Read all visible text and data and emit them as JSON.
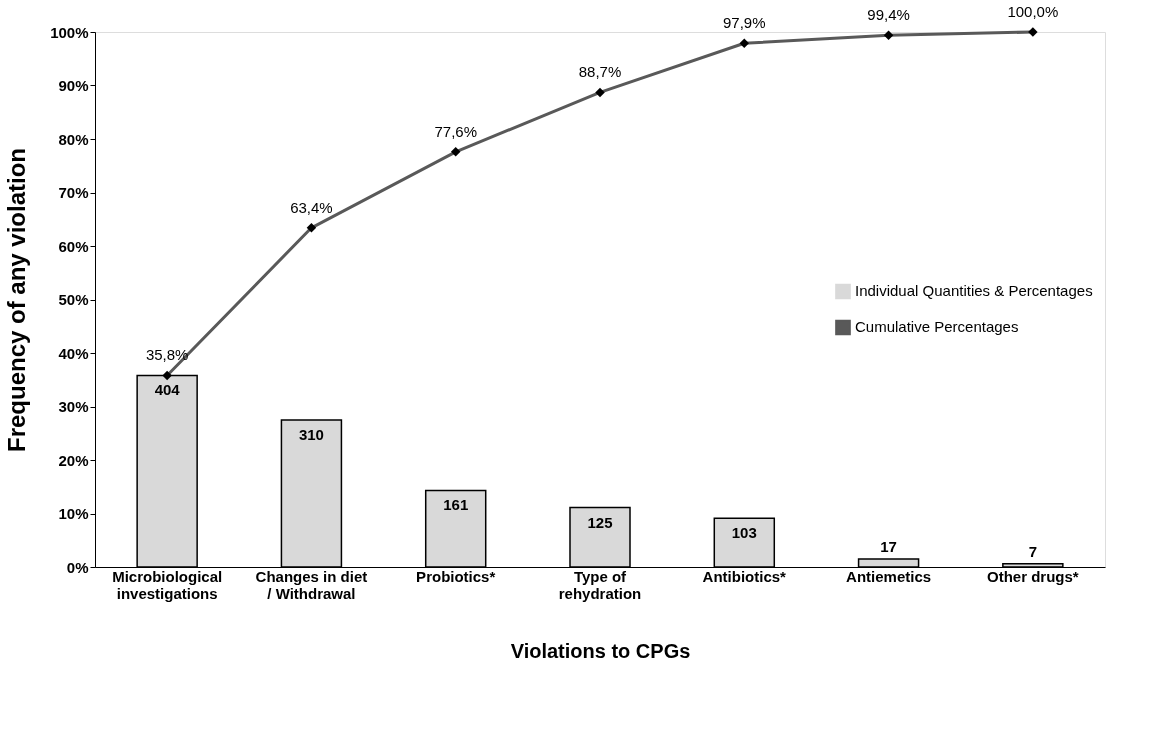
{
  "chart_data": {
    "type": "bar",
    "xlabel": "Violations to CPGs",
    "ylabel": "Frequency of any violation",
    "categories": [
      "Microbiological investigations",
      "Changes in diet / Withdrawal",
      "Probiotics*",
      "Type of rehydration",
      "Antibiotics*",
      "Antiemetics",
      "Other drugs*"
    ],
    "series": [
      {
        "name": "Individual Quantities & Percentages",
        "color": "#d9d9d9",
        "values": [
          35.8,
          27.5,
          14.3,
          11.1,
          9.1,
          1.5,
          0.6
        ]
      },
      {
        "name": "Cumulative Percentages",
        "type": "line",
        "color": "#595959",
        "marker": "diamond",
        "values": [
          35.8,
          63.4,
          77.6,
          88.7,
          97.9,
          99.4,
          100.0
        ],
        "value_labels": [
          "35,8%",
          "63,4%",
          "77,6%",
          "88,7%",
          "97,9%",
          "99,4%",
          "100,0%"
        ]
      }
    ],
    "ylim": [
      0,
      100
    ],
    "yticks": [
      {
        "value": 0,
        "label": "0%"
      },
      {
        "value": 10,
        "label": "10%"
      },
      {
        "value": 20,
        "label": "20%"
      },
      {
        "value": 30,
        "label": "30%"
      },
      {
        "value": 40,
        "label": "40%"
      },
      {
        "value": 50,
        "label": "50%"
      },
      {
        "value": 60,
        "label": "60%"
      },
      {
        "value": 70,
        "label": "70%"
      },
      {
        "value": 80,
        "label": "80%"
      },
      {
        "value": 90,
        "label": "90%"
      },
      {
        "value": 100,
        "label": "100%"
      }
    ],
    "annotations": [
      {
        "text": "404",
        "x": "Microbiological investigations",
        "y": 35.8
      },
      {
        "text": "310",
        "x": "Changes in diet / Withdrawal",
        "y": 27.5
      },
      {
        "text": "161",
        "x": "Probiotics*",
        "y": 14.3
      },
      {
        "text": "125",
        "x": "Type of rehydration",
        "y": 11.1
      },
      {
        "text": "103",
        "x": "Antibiotics*",
        "y": 9.1
      },
      {
        "text": "17",
        "x": "Antiemetics",
        "y": 1.5
      },
      {
        "text": "7",
        "x": "Other drugs*",
        "y": 0.6
      }
    ],
    "grid": false,
    "legend": "right"
  }
}
